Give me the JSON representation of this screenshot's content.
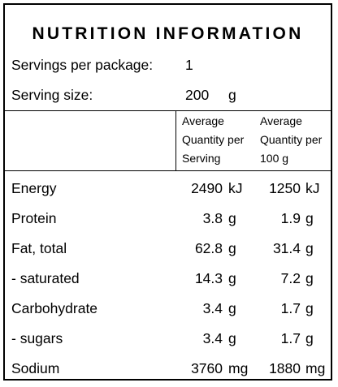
{
  "title": "NUTRITION INFORMATION",
  "servings": {
    "label": "Servings per package:",
    "value": "1"
  },
  "serving_size": {
    "label": "Serving size:",
    "value": "200",
    "unit": "g"
  },
  "columns": {
    "per_serving": [
      "Average",
      "Quantity per",
      "Serving"
    ],
    "per_100g": [
      "Average",
      "Quantity per",
      "100 g"
    ]
  },
  "nutrients": [
    {
      "name": "Energy",
      "serving": "2490",
      "serving_unit": "kJ",
      "per100": "1250",
      "per100_unit": "kJ"
    },
    {
      "name": "Protein",
      "serving": "3.8",
      "serving_unit": "g",
      "per100": "1.9",
      "per100_unit": "g"
    },
    {
      "name": "Fat, total",
      "serving": "62.8",
      "serving_unit": "g",
      "per100": "31.4",
      "per100_unit": "g"
    },
    {
      "name": "- saturated",
      "serving": "14.3",
      "serving_unit": "g",
      "per100": "7.2",
      "per100_unit": "g"
    },
    {
      "name": "Carbohydrate",
      "serving": "3.4",
      "serving_unit": "g",
      "per100": "1.7",
      "per100_unit": "g"
    },
    {
      "name": "- sugars",
      "serving": "3.4",
      "serving_unit": "g",
      "per100": "1.7",
      "per100_unit": "g"
    },
    {
      "name": "Sodium",
      "serving": "3760",
      "serving_unit": "mg",
      "per100": "1880",
      "per100_unit": "mg"
    }
  ]
}
